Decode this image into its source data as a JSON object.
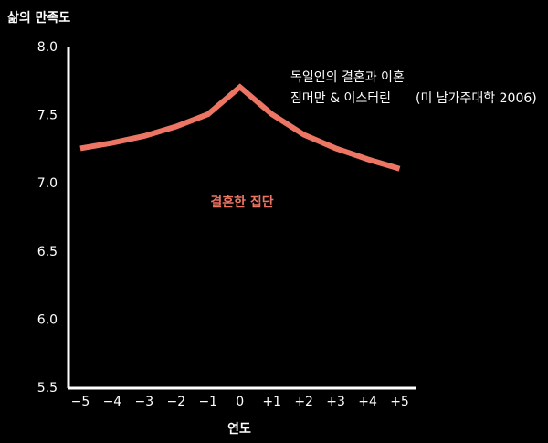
{
  "chart_data": {
    "type": "line",
    "ylabel": "삶의 만족도",
    "xlabel": "연도",
    "annotations": [
      "독일인의 결혼과 이혼",
      "짐머만 & 이스터린",
      "(미 남가주대학 2006)"
    ],
    "x": [
      -5,
      -4,
      -3,
      -2,
      -1,
      0,
      1,
      2,
      3,
      4,
      5
    ],
    "series": [
      {
        "name": "결혼한 집단",
        "color": "#ec7563",
        "values": [
          7.26,
          7.3,
          7.35,
          7.42,
          7.51,
          7.71,
          7.51,
          7.36,
          7.26,
          7.18,
          7.11
        ]
      }
    ],
    "xlim": [
      -5.37,
      5.5
    ],
    "xticks": [
      {
        "value": -5,
        "label": "−5"
      },
      {
        "value": -4,
        "label": "−4"
      },
      {
        "value": -3,
        "label": "−3"
      },
      {
        "value": -2,
        "label": "−2"
      },
      {
        "value": -1,
        "label": "−1"
      },
      0,
      {
        "value": 1,
        "label": "+1"
      },
      {
        "value": 2,
        "label": "+2"
      },
      {
        "value": 3,
        "label": "+3"
      },
      {
        "value": 4,
        "label": "+4"
      },
      {
        "value": 5,
        "label": "+5"
      }
    ],
    "ylim": [
      5.5,
      8.0
    ],
    "yticks": [
      5.5,
      {
        "value": 6,
        "label": "6.0"
      },
      6.5,
      {
        "value": 7,
        "label": "7.0"
      },
      7.5,
      {
        "value": 8,
        "label": "8.0"
      }
    ],
    "grid": false
  }
}
